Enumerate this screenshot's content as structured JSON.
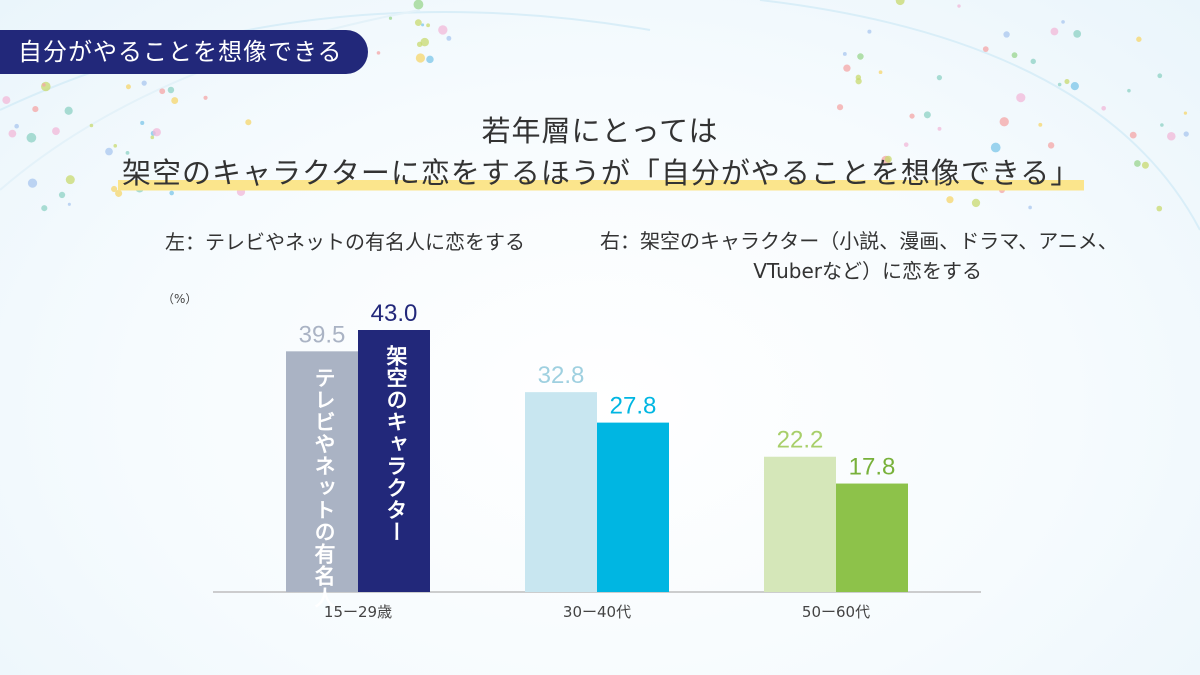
{
  "header": {
    "badge": "自分がやることを想像できる",
    "title_line1": "若年層にとっては",
    "title_line2": "架空のキャラクターに恋をするほうが「自分がやることを想像できる」"
  },
  "legend": {
    "left": "左：テレビやネットの有名人に恋をする",
    "right_line1": "右：架空のキャラクター（小説、漫画、ドラマ、アニメ、",
    "right_line2": "VTuberなど）に恋をする"
  },
  "colors": {
    "badge_bg": "#22287a",
    "highlight": "#fbe58c",
    "group_15_29": [
      "#aab3c4",
      "#22287a"
    ],
    "group_30_40": [
      "#c8e6f0",
      "#00b6e2"
    ],
    "group_50_60": [
      "#d5e7b9",
      "#8dc24a"
    ]
  },
  "chart_data": {
    "type": "bar",
    "unit": "（%）",
    "categories": [
      "15ー29歳",
      "30ー40代",
      "50ー60代"
    ],
    "series": [
      {
        "name": "テレビやネットの有名人",
        "values": [
          39.5,
          32.8,
          22.2
        ]
      },
      {
        "name": "架空のキャラクター",
        "values": [
          43.0,
          27.8,
          17.8
        ]
      }
    ],
    "value_labels": [
      [
        "39.5",
        "43.0"
      ],
      [
        "32.8",
        "27.8"
      ],
      [
        "22.2",
        "17.8"
      ]
    ],
    "ylim": [
      0,
      45
    ],
    "grid": false,
    "legend_position": "top"
  }
}
